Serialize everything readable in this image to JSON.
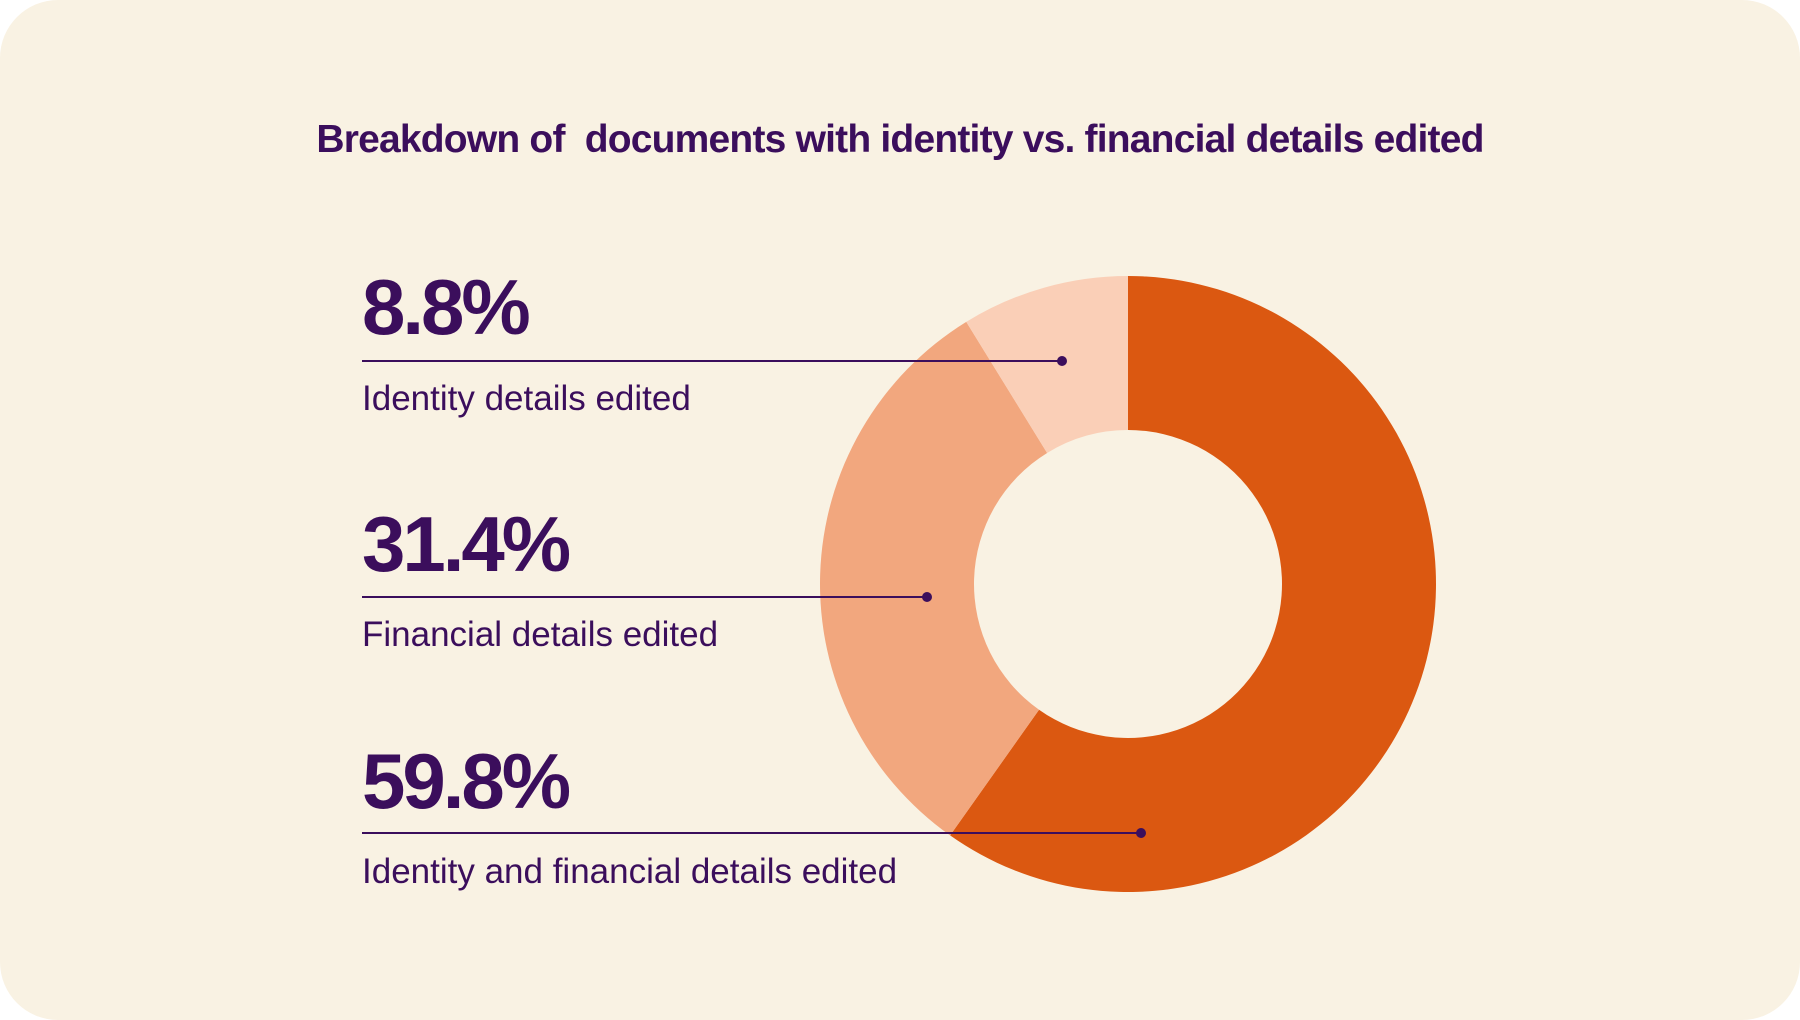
{
  "chart_data": {
    "type": "pie",
    "variant": "donut",
    "title": "Breakdown of  documents with identity vs. financial details edited",
    "slices": [
      {
        "value": 59.8,
        "value_label": "59.8%",
        "label": "Identity and financial details edited",
        "color": "#DB5811"
      },
      {
        "value": 31.4,
        "value_label": "31.4%",
        "label": "Financial details edited",
        "color": "#F2A77E"
      },
      {
        "value": 8.8,
        "value_label": "8.8%",
        "label": "Identity details edited",
        "color": "#FACFB7"
      }
    ],
    "legend": "callouts-left"
  },
  "colors": {
    "background": "#F9F2E3",
    "text": "#3B0E5C",
    "leader_line": "#3B0E5C"
  }
}
